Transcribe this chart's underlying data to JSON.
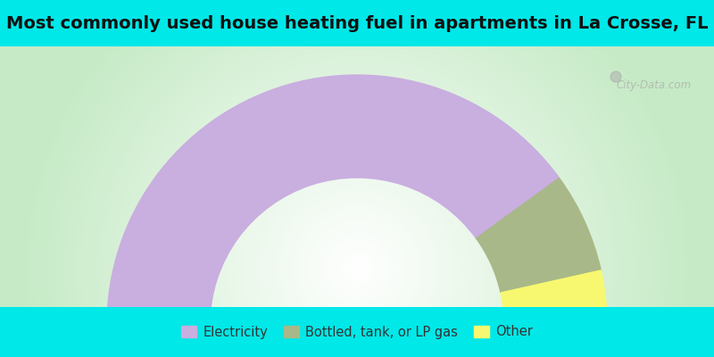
{
  "title": "Most commonly used house heating fuel in apartments in La Crosse, FL",
  "title_fontsize": 14,
  "background_cyan": "#00e8e8",
  "slices": [
    {
      "label": "Electricity",
      "value": 80,
      "color": "#c9aee0"
    },
    {
      "label": "Bottled, tank, or LP gas",
      "value": 13,
      "color": "#a8b888"
    },
    {
      "label": "Other",
      "value": 7,
      "color": "#f8f870"
    }
  ],
  "legend_fontsize": 10.5,
  "watermark": "City-Data.com"
}
